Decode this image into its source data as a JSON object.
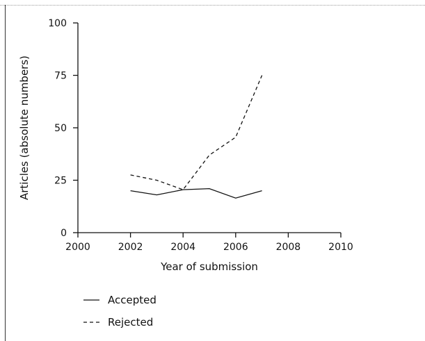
{
  "chart_data": {
    "type": "line",
    "title": "",
    "xlabel": "Year of submission",
    "ylabel": "Articles (absolute numbers)",
    "xlim": [
      2000,
      2010
    ],
    "ylim": [
      0,
      100
    ],
    "x_ticks": [
      2000,
      2002,
      2004,
      2006,
      2008,
      2010
    ],
    "y_ticks": [
      0,
      25,
      50,
      75,
      100
    ],
    "x_tick_labels": [
      "2000",
      "2002",
      "2004",
      "2006",
      "2008",
      "2010"
    ],
    "y_tick_labels": [
      "0",
      "25",
      "50",
      "75",
      "100"
    ],
    "grid": false,
    "legend_position": "bottom-left",
    "series": [
      {
        "name": "Accepted",
        "style": "solid",
        "color": "#111111",
        "x": [
          2002,
          2003,
          2004,
          2005,
          2006,
          2007
        ],
        "y": [
          20,
          18,
          20.5,
          21,
          16.5,
          20
        ]
      },
      {
        "name": "Rejected",
        "style": "dashed",
        "color": "#111111",
        "x": [
          2002,
          2003,
          2004,
          2005,
          2006,
          2007
        ],
        "y": [
          27.5,
          25,
          20.5,
          37,
          45.5,
          75
        ]
      }
    ]
  }
}
